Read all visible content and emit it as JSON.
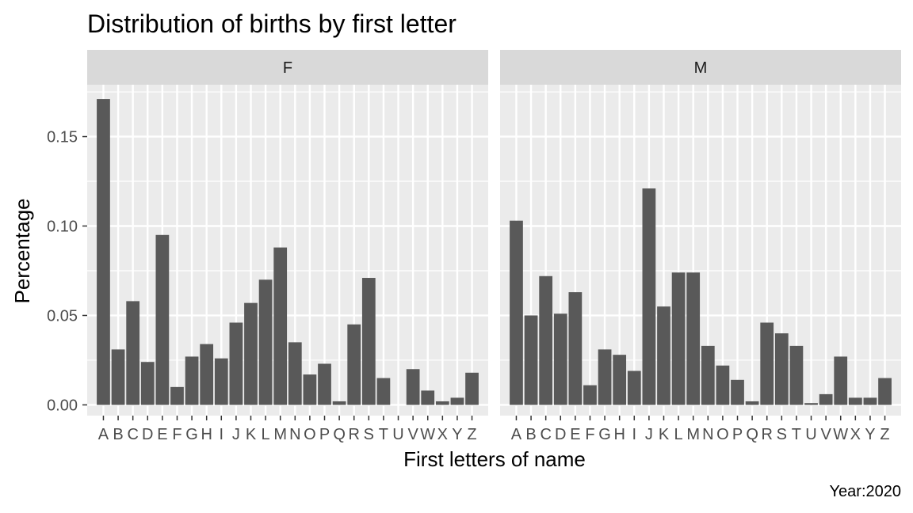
{
  "chart_data": {
    "type": "bar",
    "title": "Distribution of births by first letter",
    "xlabel": "First letters of name",
    "ylabel": "Percentage",
    "caption": "Year:2020",
    "ylim": [
      -0.006,
      0.179
    ],
    "y_ticks": [
      0.0,
      0.05,
      0.1,
      0.15
    ],
    "y_tick_labels": [
      "0.00",
      "0.05",
      "0.10",
      "0.15"
    ],
    "categories": [
      "A",
      "B",
      "C",
      "D",
      "E",
      "F",
      "G",
      "H",
      "I",
      "J",
      "K",
      "L",
      "M",
      "N",
      "O",
      "P",
      "Q",
      "R",
      "S",
      "T",
      "U",
      "V",
      "W",
      "X",
      "Y",
      "Z"
    ],
    "facet_variable": "sex",
    "grid": true,
    "bar_color": "#595959",
    "panel_background": "#ebebeb",
    "strip_background": "#d9d9d9",
    "series": [
      {
        "name": "F",
        "values": [
          0.171,
          0.031,
          0.058,
          0.024,
          0.095,
          0.01,
          0.027,
          0.034,
          0.026,
          0.046,
          0.057,
          0.07,
          0.088,
          0.035,
          0.017,
          0.023,
          0.002,
          0.045,
          0.071,
          0.015,
          0.0,
          0.02,
          0.008,
          0.002,
          0.004,
          0.018
        ]
      },
      {
        "name": "M",
        "values": [
          0.103,
          0.05,
          0.072,
          0.051,
          0.063,
          0.011,
          0.031,
          0.028,
          0.019,
          0.121,
          0.055,
          0.074,
          0.074,
          0.033,
          0.022,
          0.014,
          0.002,
          0.046,
          0.04,
          0.033,
          0.001,
          0.006,
          0.027,
          0.004,
          0.004,
          0.015
        ]
      }
    ]
  }
}
